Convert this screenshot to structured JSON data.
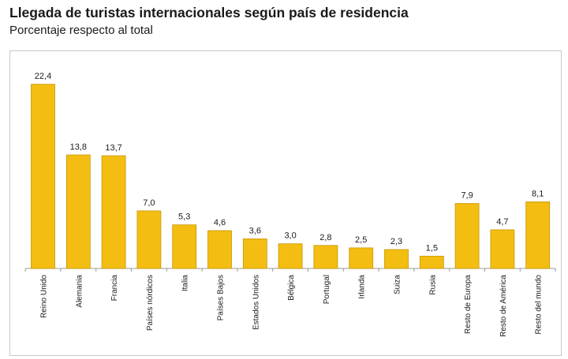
{
  "chart_data": {
    "type": "bar",
    "title": "Llegada de turistas internacionales según país de residencia",
    "subtitle": "Porcentaje respecto al total",
    "xlabel": "",
    "ylabel": "",
    "ylim": [
      0,
      25
    ],
    "grid": false,
    "legend": "none",
    "categories": [
      "Reino Unido",
      "Alemania",
      "Francia",
      "Países nórdicos",
      "Italia",
      "Países Bajos",
      "Estados Unidos",
      "Bélgica",
      "Portugal",
      "Irlanda",
      "Suiza",
      "Rusia",
      "Resto de Europa",
      "Resto de América",
      "Resto del mundo"
    ],
    "values": [
      22.4,
      13.8,
      13.7,
      7.0,
      5.3,
      4.6,
      3.6,
      3.0,
      2.8,
      2.5,
      2.3,
      1.5,
      7.9,
      4.7,
      8.1
    ],
    "value_labels": [
      "22,4",
      "13,8",
      "13,7",
      "7,0",
      "5,3",
      "4,6",
      "3,6",
      "3,0",
      "2,8",
      "2,5",
      "2,3",
      "1,5",
      "7,9",
      "4,7",
      "8,1"
    ],
    "colors": {
      "bar": "#f3be11",
      "bar_edge": "#c99600",
      "axis": "#9a9a9a",
      "text": "#1a1a1a"
    }
  }
}
